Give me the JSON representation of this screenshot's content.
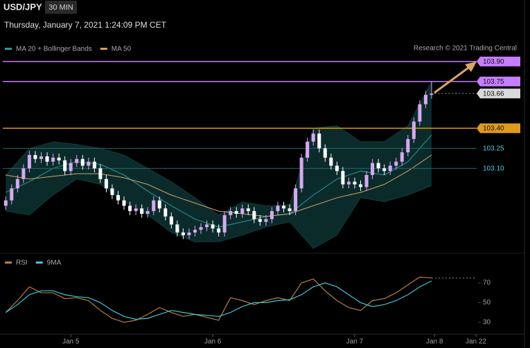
{
  "header": {
    "symbol": "USD/JPY",
    "interval": "30 MIN",
    "timestamp": "Thursday, January 7, 2021 1:24:09 PM CET",
    "source": "Research © 2021 Trading Central"
  },
  "chart_data": [
    {
      "type": "candlestick",
      "up_color": "#d8a8f0",
      "down_color": "#ffffff",
      "xlim": [
        -0.5,
        87.7
      ],
      "xticks": [
        {
          "value": 11,
          "label": "Jan 5"
        },
        {
          "value": 35,
          "label": "Jan 6"
        },
        {
          "value": 59,
          "label": "Jan 7"
        },
        {
          "value": 72.5,
          "label": "Jan 8"
        },
        {
          "value": 79.5,
          "label": "Jan 22"
        }
      ],
      "ylim": [
        102.47,
        104.36
      ],
      "open": [
        102.82,
        102.86,
        102.95,
        103.02,
        103.1,
        103.2,
        103.17,
        103.19,
        103.15,
        103.18,
        103.16,
        103.08,
        103.14,
        103.17,
        103.12,
        103.15,
        103.1,
        103.02,
        102.95,
        102.9,
        102.86,
        102.82,
        102.78,
        102.8,
        102.76,
        102.78,
        102.86,
        102.8,
        102.74,
        102.68,
        102.62,
        102.6,
        102.62,
        102.64,
        102.66,
        102.68,
        102.65,
        102.62,
        102.75,
        102.78,
        102.76,
        102.8,
        102.78,
        102.72,
        102.7,
        102.72,
        102.78,
        102.82,
        102.8,
        102.78,
        102.95,
        103.18,
        103.3,
        103.36,
        103.25,
        103.18,
        103.12,
        103.08,
        102.98,
        103.0,
        102.98,
        102.96,
        103.05,
        103.14,
        103.1,
        103.08,
        103.12,
        103.15,
        103.22,
        103.32,
        103.45,
        103.58,
        103.65
      ],
      "high": [
        102.89,
        102.98,
        103.05,
        103.13,
        103.23,
        103.23,
        103.22,
        103.22,
        103.21,
        103.21,
        103.19,
        103.17,
        103.2,
        103.2,
        103.18,
        103.18,
        103.13,
        103.05,
        102.98,
        102.93,
        102.89,
        102.85,
        102.83,
        102.83,
        102.81,
        102.89,
        102.89,
        102.83,
        102.77,
        102.71,
        102.65,
        102.65,
        102.67,
        102.69,
        102.71,
        102.71,
        102.68,
        102.78,
        102.81,
        102.81,
        102.83,
        102.83,
        102.81,
        102.75,
        102.75,
        102.81,
        102.85,
        102.85,
        102.83,
        102.98,
        103.21,
        103.33,
        103.39,
        103.39,
        103.28,
        103.21,
        103.15,
        103.11,
        103.03,
        103.03,
        103.01,
        103.08,
        103.17,
        103.17,
        103.13,
        103.15,
        103.18,
        103.25,
        103.35,
        103.48,
        103.61,
        103.68,
        103.75
      ],
      "low": [
        102.79,
        102.83,
        102.92,
        102.99,
        103.07,
        103.14,
        103.14,
        103.12,
        103.12,
        103.13,
        103.05,
        103.05,
        103.11,
        103.09,
        103.09,
        103.07,
        102.99,
        102.92,
        102.87,
        102.83,
        102.79,
        102.75,
        102.75,
        102.73,
        102.73,
        102.75,
        102.77,
        102.71,
        102.65,
        102.59,
        102.57,
        102.57,
        102.59,
        102.61,
        102.63,
        102.62,
        102.59,
        102.59,
        102.72,
        102.73,
        102.73,
        102.75,
        102.69,
        102.67,
        102.67,
        102.69,
        102.75,
        102.77,
        102.75,
        102.75,
        102.92,
        103.15,
        103.27,
        103.22,
        103.15,
        103.09,
        103.05,
        102.95,
        102.95,
        102.95,
        102.93,
        102.93,
        103.02,
        103.07,
        103.05,
        103.05,
        103.09,
        103.12,
        103.19,
        103.29,
        103.42,
        103.55,
        103.62
      ],
      "close": [
        102.86,
        102.95,
        103.02,
        103.1,
        103.2,
        103.17,
        103.19,
        103.15,
        103.18,
        103.16,
        103.08,
        103.14,
        103.17,
        103.12,
        103.15,
        103.1,
        103.02,
        102.95,
        102.9,
        102.86,
        102.82,
        102.78,
        102.8,
        102.76,
        102.78,
        102.86,
        102.8,
        102.74,
        102.68,
        102.62,
        102.6,
        102.62,
        102.64,
        102.66,
        102.68,
        102.65,
        102.62,
        102.75,
        102.78,
        102.76,
        102.8,
        102.78,
        102.72,
        102.7,
        102.72,
        102.78,
        102.82,
        102.8,
        102.78,
        102.95,
        103.18,
        103.3,
        103.36,
        103.25,
        103.18,
        103.12,
        103.08,
        102.98,
        103.0,
        102.98,
        102.96,
        103.05,
        103.14,
        103.1,
        103.08,
        103.12,
        103.15,
        103.22,
        103.32,
        103.45,
        103.58,
        103.65,
        103.66
      ],
      "series": [
        {
          "name": "MA 20 + Bollinger Bands",
          "color": "#2a9a9a",
          "band_color": "#0f3a3a",
          "x": [
            0,
            4,
            8,
            12,
            16,
            20,
            24,
            28,
            32,
            36,
            40,
            44,
            48,
            52,
            56,
            60,
            64,
            68,
            72
          ],
          "values": [
            102.92,
            103.0,
            103.1,
            103.15,
            103.13,
            103.05,
            102.93,
            102.82,
            102.72,
            102.66,
            102.7,
            102.74,
            102.76,
            102.9,
            103.02,
            103.08,
            103.05,
            103.15,
            103.35
          ],
          "upper": [
            103.05,
            103.25,
            103.3,
            103.28,
            103.25,
            103.2,
            103.1,
            103.0,
            102.88,
            102.75,
            102.85,
            102.82,
            102.83,
            103.4,
            103.42,
            103.3,
            103.3,
            103.42,
            103.75
          ],
          "lower": [
            102.78,
            102.75,
            102.9,
            103.02,
            102.98,
            102.85,
            102.75,
            102.62,
            102.55,
            102.55,
            102.6,
            102.66,
            102.7,
            102.5,
            102.6,
            102.88,
            102.85,
            102.9,
            102.97
          ]
        },
        {
          "name": "MA 50",
          "color": "#d4a264",
          "x": [
            0,
            4,
            8,
            12,
            16,
            20,
            24,
            28,
            32,
            36,
            40,
            44,
            48,
            52,
            56,
            60,
            64,
            68,
            72
          ],
          "values": [
            103.05,
            103.02,
            103.04,
            103.06,
            103.06,
            103.03,
            102.98,
            102.9,
            102.84,
            102.78,
            102.76,
            102.74,
            102.76,
            102.82,
            102.88,
            102.92,
            102.98,
            103.08,
            103.2
          ]
        }
      ],
      "levels": [
        {
          "value": 103.9,
          "label": "103.90",
          "color": "#c77dff",
          "box": true,
          "dotted": false
        },
        {
          "value": 103.75,
          "label": "103.75",
          "color": "#c77dff",
          "box": true,
          "dotted": false
        },
        {
          "value": 103.66,
          "label": "103.66",
          "color": "#d9d9d9",
          "box": true,
          "dotted": true
        },
        {
          "value": 103.4,
          "label": "103.40",
          "color": "#e09a1a",
          "box": true,
          "dotted": false
        },
        {
          "value": 103.25,
          "label": "103.25",
          "color": "#1f6a6c",
          "box": false,
          "dotted": false
        },
        {
          "value": 103.1,
          "label": "103.10",
          "color": "#1f6a6c",
          "box": false,
          "dotted": false
        }
      ]
    },
    {
      "type": "line",
      "xlim": [
        -0.5,
        87.7
      ],
      "ylim": [
        20,
        96
      ],
      "yticks": [
        70,
        50,
        30
      ],
      "series": [
        {
          "name": "RSI",
          "color": "#b8803e",
          "x": [
            0,
            2,
            4,
            6,
            8,
            10,
            12,
            14,
            16,
            18,
            20,
            22,
            24,
            26,
            28,
            30,
            32,
            34,
            36,
            38,
            40,
            42,
            44,
            46,
            48,
            50,
            52,
            54,
            56,
            58,
            60,
            62,
            64,
            66,
            68,
            70,
            72
          ],
          "values": [
            40,
            52,
            66,
            60,
            60,
            54,
            55,
            52,
            42,
            34,
            30,
            32,
            38,
            45,
            40,
            36,
            38,
            35,
            32,
            55,
            52,
            48,
            52,
            55,
            52,
            70,
            74,
            62,
            52,
            45,
            42,
            52,
            54,
            60,
            68,
            76,
            75
          ]
        },
        {
          "name": "9MA",
          "color": "#3cc8d8",
          "x": [
            0,
            2,
            4,
            6,
            8,
            10,
            12,
            14,
            16,
            18,
            20,
            22,
            24,
            26,
            28,
            30,
            32,
            34,
            36,
            38,
            40,
            42,
            44,
            46,
            48,
            50,
            52,
            54,
            56,
            58,
            60,
            62,
            64,
            66,
            68,
            70,
            72
          ],
          "values": [
            40,
            48,
            58,
            62,
            62,
            58,
            56,
            55,
            50,
            42,
            36,
            33,
            34,
            38,
            42,
            40,
            38,
            37,
            36,
            40,
            46,
            50,
            50,
            52,
            53,
            58,
            66,
            70,
            66,
            58,
            50,
            46,
            48,
            52,
            58,
            66,
            72
          ]
        }
      ]
    }
  ]
}
